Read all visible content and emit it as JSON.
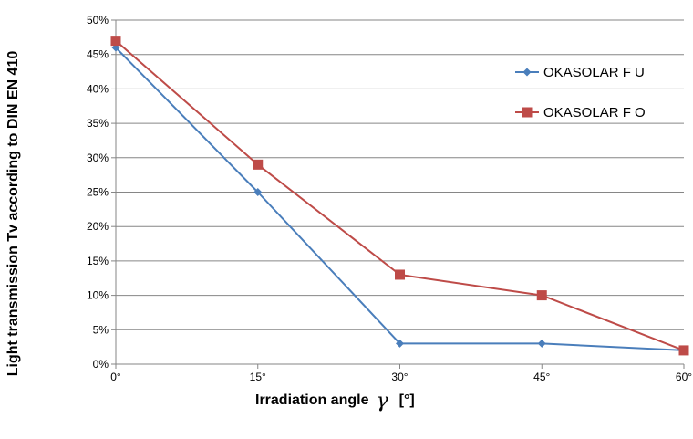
{
  "chart_data": {
    "type": "line",
    "categories": [
      "0°",
      "15°",
      "30°",
      "45°",
      "60°"
    ],
    "x": [
      0,
      15,
      30,
      45,
      60
    ],
    "series": [
      {
        "name": "OKASOLAR F U",
        "values": [
          46,
          25,
          3,
          3,
          2
        ],
        "color": "#4a7ebb",
        "marker": "diamond"
      },
      {
        "name": "OKASOLAR F O",
        "values": [
          47,
          29,
          13,
          10,
          2
        ],
        "color": "#be4b48",
        "marker": "square"
      }
    ],
    "yticks": [
      "0%",
      "5%",
      "10%",
      "15%",
      "20%",
      "25%",
      "30%",
      "35%",
      "40%",
      "45%",
      "50%"
    ],
    "ylim": [
      0,
      50
    ],
    "xlim": [
      0,
      60
    ],
    "xlabel": {
      "main": "Irradiation angle",
      "symbol": "γ",
      "unit": "[°]"
    },
    "ylabel": "Light transmission Tv according to DIN EN 410",
    "grid": "horizontal",
    "legend_position": "right"
  }
}
